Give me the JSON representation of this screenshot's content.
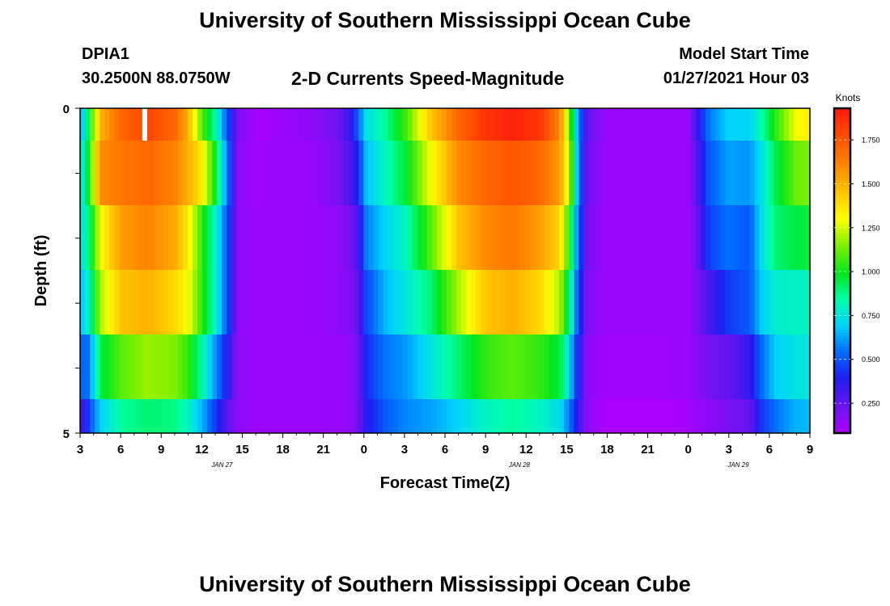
{
  "header": {
    "title": "University of Southern Mississippi Ocean Cube",
    "station_id": "DPIA1",
    "station_coords": "30.2500N 88.0750W",
    "chart_title": "2-D Currents Speed-Magnitude",
    "model_start_label": "Model Start Time",
    "model_start_value": "01/27/2021 Hour 03"
  },
  "footer": {
    "title": "University of Southern Mississippi Ocean Cube"
  },
  "chart_data": {
    "type": "heatmap",
    "title": "2-D Currents Speed-Magnitude",
    "xlabel": "Forecast Time(Z)",
    "ylabel": "Depth (ft)",
    "colorbar_label": "Knots",
    "colorbar_ticks": [
      "0.250",
      "0.500",
      "0.750",
      "1.000",
      "1.250",
      "1.500",
      "1.750"
    ],
    "colorbar_values": [
      0.25,
      0.5,
      0.75,
      1.0,
      1.25,
      1.5,
      1.75
    ],
    "color_range": [
      0.08,
      1.93
    ],
    "x_range_hours": [
      0,
      54
    ],
    "ylim": [
      0,
      5
    ],
    "y_ticks": [
      "0",
      "5"
    ],
    "x_tick_labels": [
      "3",
      "6",
      "9",
      "12",
      "15",
      "18",
      "21",
      "0",
      "3",
      "6",
      "9",
      "12",
      "15",
      "18",
      "21",
      "0",
      "3",
      "6",
      "9"
    ],
    "date_labels": [
      {
        "text": "JAN 27",
        "hour": 10.5
      },
      {
        "text": "JAN 28",
        "hour": 32.5
      },
      {
        "text": "JAN 29",
        "hour": 48.7
      }
    ],
    "depth_rows": [
      "surface",
      "1 ft",
      "2 ft",
      "3 ft",
      "4 ft",
      "5 ft"
    ],
    "anchors": [
      {
        "h": 0.0,
        "v": [
          0.62,
          0.7,
          0.72,
          0.66,
          0.52,
          0.3
        ]
      },
      {
        "h": 0.6,
        "v": [
          0.95,
          1.0,
          0.9,
          0.8,
          0.55,
          0.45
        ]
      },
      {
        "h": 1.5,
        "v": [
          1.5,
          1.6,
          1.3,
          1.2,
          0.95,
          0.7
        ]
      },
      {
        "h": 3.0,
        "v": [
          1.7,
          1.65,
          1.55,
          1.45,
          1.1,
          0.85
        ]
      },
      {
        "h": 5.0,
        "v": [
          1.8,
          1.7,
          1.62,
          1.5,
          1.18,
          0.9
        ]
      },
      {
        "h": 7.0,
        "v": [
          1.7,
          1.62,
          1.52,
          1.4,
          1.15,
          0.88
        ]
      },
      {
        "h": 8.0,
        "v": [
          1.5,
          1.5,
          1.35,
          1.3,
          1.05,
          0.8
        ]
      },
      {
        "h": 9.0,
        "v": [
          1.1,
          1.35,
          1.05,
          1.05,
          0.85,
          0.65
        ]
      },
      {
        "h": 10.0,
        "v": [
          0.85,
          1.0,
          0.8,
          0.8,
          0.6,
          0.45
        ]
      },
      {
        "h": 11.0,
        "v": [
          0.45,
          0.5,
          0.45,
          0.45,
          0.35,
          0.25
        ]
      },
      {
        "h": 11.7,
        "v": [
          0.18,
          0.15,
          0.15,
          0.15,
          0.15,
          0.15
        ]
      },
      {
        "h": 12.8,
        "v": [
          0.12,
          0.12,
          0.12,
          0.12,
          0.12,
          0.12
        ]
      },
      {
        "h": 13.2,
        "v": [
          0.05,
          0.1,
          0.12,
          0.12,
          0.12,
          0.12
        ]
      },
      {
        "h": 13.7,
        "v": [
          0.1,
          0.12,
          0.12,
          0.12,
          0.12,
          0.12
        ]
      },
      {
        "h": 15.0,
        "v": [
          0.12,
          0.12,
          0.12,
          0.12,
          0.12,
          0.12
        ]
      },
      {
        "h": 17.0,
        "v": [
          0.15,
          0.12,
          0.12,
          0.12,
          0.12,
          0.12
        ]
      },
      {
        "h": 19.0,
        "v": [
          0.22,
          0.2,
          0.15,
          0.15,
          0.13,
          0.13
        ]
      },
      {
        "h": 20.0,
        "v": [
          0.35,
          0.3,
          0.2,
          0.18,
          0.15,
          0.15
        ]
      },
      {
        "h": 20.7,
        "v": [
          0.55,
          0.45,
          0.35,
          0.3,
          0.25,
          0.25
        ]
      },
      {
        "h": 21.0,
        "v": [
          0.72,
          0.65,
          0.55,
          0.45,
          0.4,
          0.35
        ]
      },
      {
        "h": 22.5,
        "v": [
          0.85,
          0.8,
          0.7,
          0.65,
          0.55,
          0.5
        ]
      },
      {
        "h": 24.0,
        "v": [
          1.05,
          0.95,
          0.8,
          0.75,
          0.6,
          0.58
        ]
      },
      {
        "h": 26.0,
        "v": [
          1.45,
          1.3,
          1.1,
          0.9,
          0.75,
          0.62
        ]
      },
      {
        "h": 28.0,
        "v": [
          1.7,
          1.6,
          1.45,
          1.2,
          0.9,
          0.7
        ]
      },
      {
        "h": 30.0,
        "v": [
          1.85,
          1.7,
          1.6,
          1.45,
          1.05,
          0.8
        ]
      },
      {
        "h": 32.0,
        "v": [
          1.9,
          1.75,
          1.65,
          1.5,
          1.1,
          0.85
        ]
      },
      {
        "h": 34.0,
        "v": [
          1.85,
          1.7,
          1.55,
          1.4,
          1.05,
          0.8
        ]
      },
      {
        "h": 35.5,
        "v": [
          1.6,
          1.55,
          1.4,
          1.2,
          0.95,
          0.72
        ]
      },
      {
        "h": 36.2,
        "v": [
          1.1,
          1.2,
          1.0,
          0.85,
          0.7,
          0.55
        ]
      },
      {
        "h": 36.8,
        "v": [
          0.6,
          0.6,
          0.55,
          0.5,
          0.4,
          0.35
        ]
      },
      {
        "h": 37.5,
        "v": [
          0.25,
          0.22,
          0.2,
          0.18,
          0.15,
          0.15
        ]
      },
      {
        "h": 39.0,
        "v": [
          0.12,
          0.12,
          0.12,
          0.12,
          0.1,
          0.08
        ]
      },
      {
        "h": 42.0,
        "v": [
          0.12,
          0.12,
          0.12,
          0.12,
          0.1,
          0.06
        ]
      },
      {
        "h": 45.0,
        "v": [
          0.12,
          0.12,
          0.12,
          0.12,
          0.12,
          0.1
        ]
      },
      {
        "h": 45.5,
        "v": [
          0.3,
          0.25,
          0.2,
          0.18,
          0.15,
          0.12
        ]
      },
      {
        "h": 46.5,
        "v": [
          0.55,
          0.5,
          0.45,
          0.3,
          0.22,
          0.15
        ]
      },
      {
        "h": 48.0,
        "v": [
          0.7,
          0.62,
          0.55,
          0.45,
          0.25,
          0.2
        ]
      },
      {
        "h": 49.5,
        "v": [
          0.7,
          0.6,
          0.5,
          0.5,
          0.35,
          0.25
        ]
      },
      {
        "h": 50.5,
        "v": [
          0.85,
          0.75,
          0.75,
          0.7,
          0.55,
          0.45
        ]
      },
      {
        "h": 51.5,
        "v": [
          1.05,
          0.95,
          0.9,
          0.78,
          0.7,
          0.55
        ]
      },
      {
        "h": 53.0,
        "v": [
          1.3,
          1.12,
          0.95,
          0.8,
          0.75,
          0.65
        ]
      },
      {
        "h": 54.0,
        "v": [
          1.35,
          1.15,
          0.95,
          0.8,
          0.75,
          0.65
        ]
      }
    ],
    "missing_cells": [
      {
        "hour_from": 4.6,
        "hour_to": 4.8,
        "row": 0
      }
    ]
  }
}
